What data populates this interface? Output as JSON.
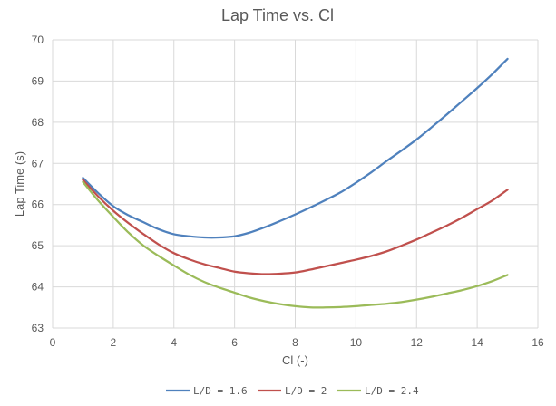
{
  "chart_data": {
    "type": "line",
    "title": "Lap Time vs. Cl",
    "xlabel": "Cl (-)",
    "ylabel": "Lap Time  (s)",
    "xlim": [
      0,
      16
    ],
    "ylim": [
      63,
      70
    ],
    "xticks": [
      0,
      2,
      4,
      6,
      8,
      10,
      12,
      14,
      16
    ],
    "yticks": [
      63,
      64,
      65,
      66,
      67,
      68,
      69,
      70
    ],
    "grid": "vertical and horizontal",
    "legend_position": "bottom",
    "x": [
      1,
      1.5,
      2,
      2.5,
      3,
      3.5,
      4,
      4.5,
      5,
      5.5,
      6,
      6.5,
      7,
      7.5,
      8,
      8.5,
      9,
      9.5,
      10,
      10.5,
      11,
      11.5,
      12,
      12.5,
      13,
      13.5,
      14,
      14.5,
      15
    ],
    "series": [
      {
        "name": "L/D = 1.6",
        "color": "#4f81bd",
        "values": [
          66.65,
          66.28,
          65.96,
          65.74,
          65.57,
          65.4,
          65.28,
          65.23,
          65.2,
          65.2,
          65.23,
          65.32,
          65.45,
          65.6,
          65.76,
          65.93,
          66.11,
          66.3,
          66.53,
          66.78,
          67.05,
          67.31,
          67.58,
          67.88,
          68.19,
          68.51,
          68.83,
          69.17,
          69.54
        ]
      },
      {
        "name": "L/D = 2",
        "color": "#c0504d",
        "values": [
          66.6,
          66.2,
          65.85,
          65.55,
          65.28,
          65.03,
          64.82,
          64.67,
          64.55,
          64.46,
          64.37,
          64.33,
          64.31,
          64.32,
          64.35,
          64.42,
          64.5,
          64.58,
          64.66,
          64.75,
          64.86,
          65.0,
          65.15,
          65.32,
          65.49,
          65.68,
          65.89,
          66.1,
          66.36
        ]
      },
      {
        "name": "L/D = 2.4",
        "color": "#9bbb59",
        "values": [
          66.55,
          66.1,
          65.7,
          65.32,
          65.0,
          64.75,
          64.52,
          64.3,
          64.12,
          63.98,
          63.86,
          63.74,
          63.65,
          63.58,
          63.53,
          63.5,
          63.5,
          63.51,
          63.53,
          63.56,
          63.59,
          63.63,
          63.69,
          63.76,
          63.84,
          63.92,
          64.02,
          64.14,
          64.29
        ]
      }
    ]
  }
}
